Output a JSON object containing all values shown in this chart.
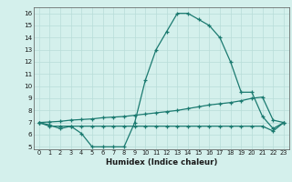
{
  "x": [
    0,
    1,
    2,
    3,
    4,
    5,
    6,
    7,
    8,
    9,
    10,
    11,
    12,
    13,
    14,
    15,
    16,
    17,
    18,
    19,
    20,
    21,
    22,
    23
  ],
  "line1": [
    7.0,
    6.8,
    6.5,
    6.7,
    6.1,
    5.0,
    5.0,
    5.0,
    5.0,
    7.0,
    10.5,
    13.0,
    14.5,
    16.0,
    16.0,
    15.5,
    15.0,
    14.0,
    12.0,
    9.5,
    9.5,
    7.5,
    6.5,
    7.0
  ],
  "line2": [
    7.0,
    7.05,
    7.1,
    7.2,
    7.25,
    7.3,
    7.4,
    7.45,
    7.5,
    7.6,
    7.7,
    7.8,
    7.9,
    8.0,
    8.15,
    8.3,
    8.45,
    8.55,
    8.65,
    8.8,
    9.0,
    9.1,
    7.2,
    7.0
  ],
  "line3": [
    7.0,
    6.7,
    6.7,
    6.7,
    6.7,
    6.7,
    6.7,
    6.7,
    6.7,
    6.7,
    6.7,
    6.7,
    6.7,
    6.7,
    6.7,
    6.7,
    6.7,
    6.7,
    6.7,
    6.7,
    6.7,
    6.7,
    6.3,
    7.0
  ],
  "line_color": "#1b7a70",
  "bg_color": "#d4f0ec",
  "grid_color": "#b8ddd8",
  "xlabel": "Humidex (Indice chaleur)",
  "ylim": [
    4.8,
    16.5
  ],
  "xlim": [
    -0.5,
    23.5
  ],
  "yticks": [
    5,
    6,
    7,
    8,
    9,
    10,
    11,
    12,
    13,
    14,
    15,
    16
  ],
  "xticks": [
    0,
    1,
    2,
    3,
    4,
    5,
    6,
    7,
    8,
    9,
    10,
    11,
    12,
    13,
    14,
    15,
    16,
    17,
    18,
    19,
    20,
    21,
    22,
    23
  ]
}
